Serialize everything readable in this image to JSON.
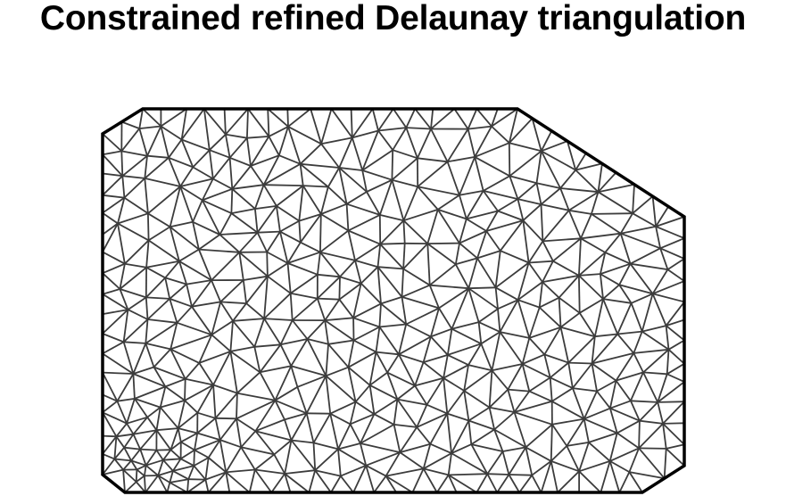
{
  "title": "Constrained refined Delaunay triangulation",
  "colors": {
    "background": "#ffffff",
    "mesh_edge": "#3c3c3c",
    "boundary": "#000000",
    "title": "#000000"
  },
  "diagram": {
    "kind": "constrained-refined-delaunay-triangulation",
    "boundary_shape": "polygon with beveled top-left, top-right and bottom corners",
    "boundary_vertex_count": 7
  }
}
